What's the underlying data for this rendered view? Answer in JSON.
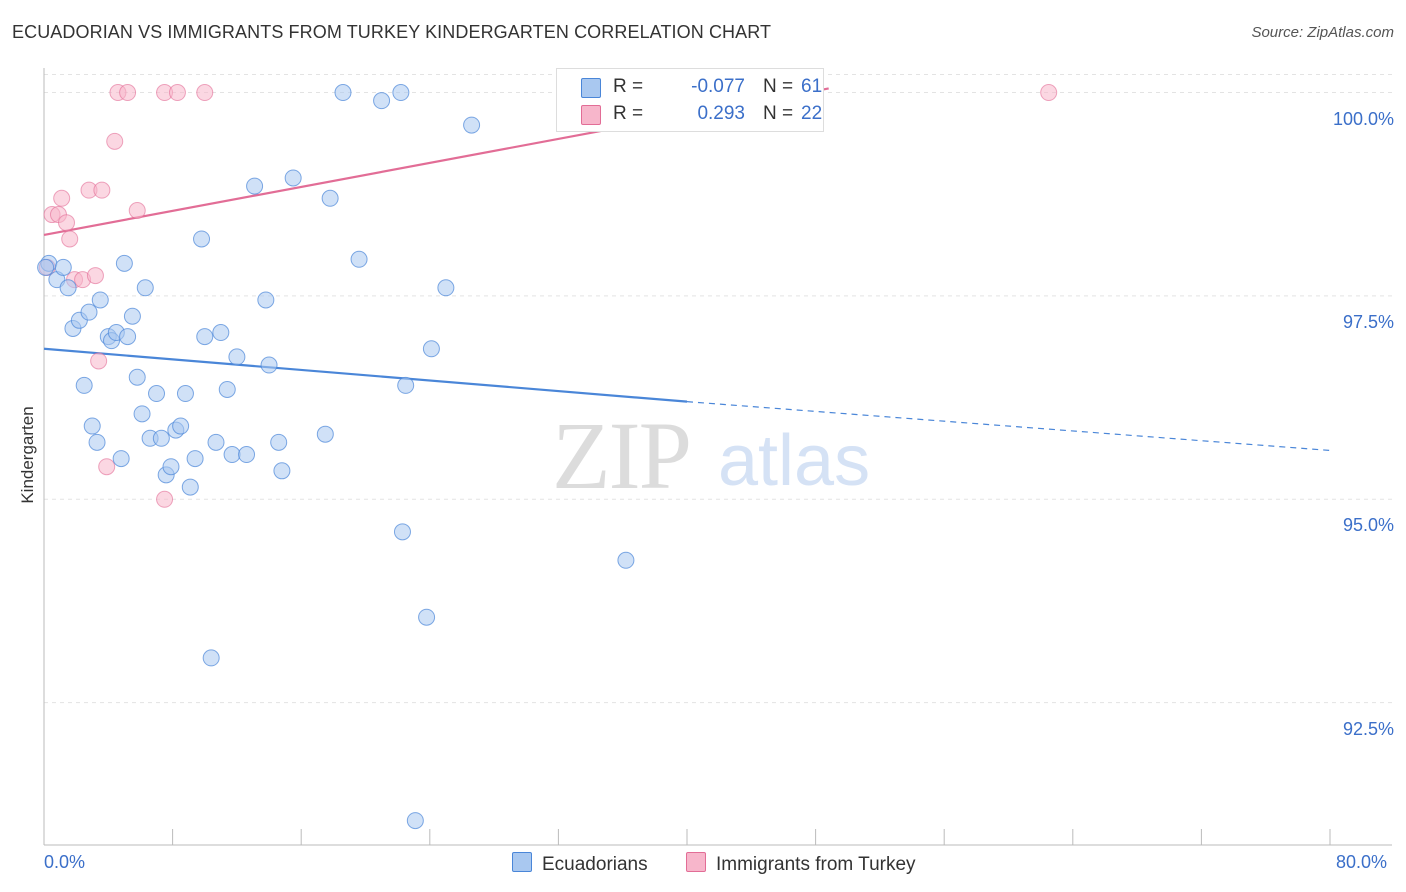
{
  "title": "ECUADORIAN VS IMMIGRANTS FROM TURKEY KINDERGARTEN CORRELATION CHART",
  "source": "Source: ZipAtlas.com",
  "watermark": {
    "zip": "ZIP",
    "atlas": "atlas"
  },
  "legend": {
    "row1": {
      "r_label": "R =",
      "r_value": "-0.077",
      "n_label": "N =",
      "n_value": "61",
      "color": "#a9c8f0"
    },
    "row2": {
      "r_label": "R =",
      "r_value": "0.293",
      "n_label": "N =",
      "n_value": "22",
      "color": "#f7b6cb"
    }
  },
  "bottom_legend": {
    "series1": "Ecuadorians",
    "series2": "Immigrants from Turkey"
  },
  "chart_data": {
    "type": "scatter",
    "title": "ECUADORIAN VS IMMIGRANTS FROM TURKEY KINDERGARTEN CORRELATION CHART",
    "xlabel": "",
    "ylabel": "Kindergarten",
    "xlim": [
      0,
      80
    ],
    "ylim": [
      90.75,
      100.4
    ],
    "x_tick_labels": [
      "0.0%",
      "80.0%"
    ],
    "y_ticks": [
      92.5,
      95.0,
      97.5,
      100.0
    ],
    "y_tick_labels": [
      "92.5%",
      "95.0%",
      "97.5%",
      "100.0%"
    ],
    "grid": true,
    "legend_position": "top-center",
    "colors": {
      "ecuadorians": "#4a86d8",
      "turkey": "#e26d96",
      "ecuadorians_fill": "#a9c8f0",
      "turkey_fill": "#f7b6cb"
    },
    "series": [
      {
        "name": "Ecuadorians",
        "stats": {
          "R": -0.077,
          "N": 61
        },
        "trend": {
          "x_start": 0,
          "y_start": 96.85,
          "x_solid_end": 40,
          "y_solid_end": 96.2,
          "x_end": 80,
          "y_end": 95.6
        },
        "points": [
          [
            0.3,
            97.9
          ],
          [
            0.8,
            97.7
          ],
          [
            1.2,
            97.85
          ],
          [
            1.5,
            97.6
          ],
          [
            1.8,
            97.1
          ],
          [
            2.2,
            97.2
          ],
          [
            2.5,
            96.4
          ],
          [
            2.8,
            97.3
          ],
          [
            3.0,
            95.9
          ],
          [
            3.3,
            95.7
          ],
          [
            3.5,
            97.45
          ],
          [
            4.0,
            97.0
          ],
          [
            4.2,
            96.95
          ],
          [
            4.5,
            97.05
          ],
          [
            4.8,
            95.5
          ],
          [
            5.0,
            97.9
          ],
          [
            5.2,
            97.0
          ],
          [
            5.5,
            97.25
          ],
          [
            5.8,
            96.5
          ],
          [
            6.1,
            96.05
          ],
          [
            6.3,
            97.6
          ],
          [
            6.6,
            95.75
          ],
          [
            7.0,
            96.3
          ],
          [
            7.3,
            95.75
          ],
          [
            7.6,
            95.3
          ],
          [
            7.9,
            95.4
          ],
          [
            8.2,
            95.85
          ],
          [
            8.5,
            95.9
          ],
          [
            8.8,
            96.3
          ],
          [
            9.1,
            95.15
          ],
          [
            9.4,
            95.5
          ],
          [
            9.8,
            98.2
          ],
          [
            10.0,
            97.0
          ],
          [
            10.4,
            93.05
          ],
          [
            10.7,
            95.7
          ],
          [
            11.0,
            97.05
          ],
          [
            11.4,
            96.35
          ],
          [
            11.7,
            95.55
          ],
          [
            12.0,
            96.75
          ],
          [
            12.6,
            95.55
          ],
          [
            13.1,
            98.85
          ],
          [
            13.8,
            97.45
          ],
          [
            14.0,
            96.65
          ],
          [
            14.6,
            95.7
          ],
          [
            14.8,
            95.35
          ],
          [
            15.5,
            98.95
          ],
          [
            17.5,
            95.8
          ],
          [
            17.8,
            98.7
          ],
          [
            18.6,
            100.0
          ],
          [
            19.6,
            97.95
          ],
          [
            21.0,
            99.9
          ],
          [
            22.2,
            100.0
          ],
          [
            22.3,
            94.6
          ],
          [
            22.5,
            96.4
          ],
          [
            23.1,
            91.05
          ],
          [
            23.8,
            93.55
          ],
          [
            24.1,
            96.85
          ],
          [
            25.0,
            97.6
          ],
          [
            26.6,
            99.6
          ],
          [
            36.2,
            94.25
          ],
          [
            0.1,
            97.85
          ]
        ]
      },
      {
        "name": "Immigrants from Turkey",
        "stats": {
          "R": 0.293,
          "N": 22
        },
        "trend": {
          "x_start": 0,
          "y_start": 98.25,
          "x_end": 80,
          "y_end": 101.2
        },
        "points": [
          [
            0.2,
            97.85
          ],
          [
            0.5,
            98.5
          ],
          [
            0.9,
            98.5
          ],
          [
            1.1,
            98.7
          ],
          [
            1.4,
            98.4
          ],
          [
            1.6,
            98.2
          ],
          [
            1.9,
            97.7
          ],
          [
            2.4,
            97.7
          ],
          [
            2.8,
            98.8
          ],
          [
            3.2,
            97.75
          ],
          [
            3.4,
            96.7
          ],
          [
            3.6,
            98.8
          ],
          [
            3.9,
            95.4
          ],
          [
            4.4,
            99.4
          ],
          [
            4.6,
            100.0
          ],
          [
            5.2,
            100.0
          ],
          [
            5.8,
            98.55
          ],
          [
            7.5,
            100.0
          ],
          [
            7.5,
            95.0
          ],
          [
            8.3,
            100.0
          ],
          [
            10.0,
            100.0
          ],
          [
            62.5,
            100.0
          ]
        ]
      }
    ]
  }
}
